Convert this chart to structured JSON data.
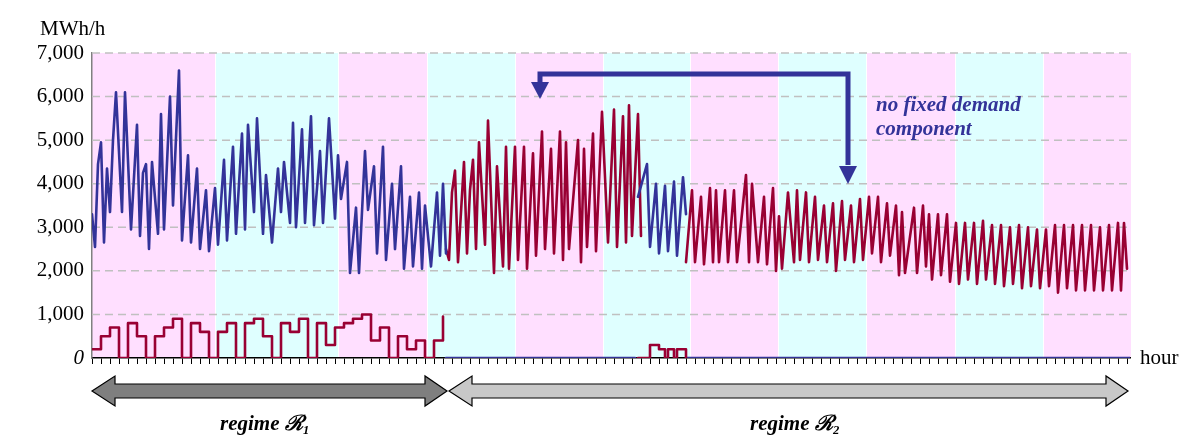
{
  "chart_data": {
    "type": "line",
    "ylabel": "MWh/h",
    "xlabel": "hour",
    "categories": [
      null,
      null,
      null,
      null,
      null,
      null,
      null,
      null,
      null,
      null,
      null,
      null,
      null,
      null,
      null,
      null,
      null,
      null,
      null,
      null,
      null,
      null,
      null,
      null,
      null,
      null,
      null,
      null,
      null,
      null,
      null,
      null,
      null,
      null,
      null,
      null,
      null,
      null,
      null,
      null,
      null,
      null,
      null,
      null,
      null,
      null,
      null,
      null,
      null,
      null,
      null,
      null,
      null,
      null,
      null,
      null,
      null,
      null,
      null,
      null,
      null,
      null,
      null,
      null,
      null,
      null,
      null,
      null,
      null,
      null,
      null,
      null,
      null,
      null,
      null,
      null,
      null,
      null,
      null,
      null,
      null,
      null,
      null,
      null,
      null,
      null,
      null,
      null,
      null,
      null,
      null,
      null,
      null,
      null,
      null,
      null,
      null,
      null,
      null,
      null,
      null,
      null,
      null,
      null,
      null,
      null,
      null,
      null,
      null,
      null,
      null,
      null,
      null,
      null,
      null,
      null,
      null,
      null,
      null,
      null,
      null,
      null,
      null,
      null,
      null,
      null,
      null,
      null,
      null,
      null,
      null,
      null,
      null,
      null,
      null,
      null,
      null,
      null,
      null,
      null,
      null,
      null,
      null,
      null,
      null,
      null,
      null,
      null,
      null,
      null,
      null,
      null,
      null,
      null,
      null,
      null,
      null,
      null,
      null,
      null,
      null,
      null,
      null,
      null,
      null,
      null,
      null,
      null,
      null,
      null,
      null,
      null,
      null,
      null,
      null,
      null,
      null,
      null,
      null,
      null,
      null,
      null,
      null,
      null,
      null,
      null,
      null,
      null,
      null,
      null,
      null,
      null,
      null,
      null,
      null,
      null,
      null,
      null,
      null,
      null,
      null,
      null,
      null,
      null,
      null,
      null,
      null,
      null,
      null,
      null,
      null,
      null,
      null,
      null,
      null,
      null,
      null,
      null,
      null,
      null,
      null,
      null,
      null,
      null,
      null,
      null,
      null,
      null,
      null,
      null,
      null,
      null,
      null,
      null,
      null,
      null,
      null,
      null,
      null,
      null,
      null,
      null,
      null,
      null,
      null,
      null,
      null,
      null,
      null,
      null,
      null,
      null,
      null,
      null,
      null,
      null,
      null,
      null,
      null,
      null,
      null,
      null,
      null,
      null,
      null,
      null,
      null,
      null,
      null,
      null,
      null,
      null,
      null,
      null,
      null,
      null,
      null,
      null,
      null,
      null,
      null,
      null,
      null,
      null,
      null,
      null,
      null,
      null,
      null,
      null,
      null,
      null,
      null,
      null,
      null,
      null,
      null,
      null,
      null,
      null,
      null,
      null,
      null,
      null,
      null,
      null,
      null,
      null,
      null,
      null,
      null,
      null,
      null,
      null,
      null,
      null,
      null,
      null,
      null,
      null,
      null,
      null,
      null,
      null,
      null,
      null,
      null,
      null,
      null,
      null,
      null,
      null,
      null,
      null,
      null,
      null,
      null,
      null,
      null,
      null,
      null,
      null,
      null,
      null,
      null,
      null,
      null
    ],
    "series": [
      {
        "color": "#333399",
        "values": [
          3300,
          2550,
          4450,
          4950,
          2650,
          4350,
          3350,
          5000,
          6100,
          null,
          3350,
          6100,
          null,
          2950,
          null,
          5350,
          2800,
          4250,
          4450,
          2500,
          4500,
          null,
          2850,
          5600,
          2950,
          null,
          6000,
          3500,
          null,
          6600,
          2700,
          null,
          4650,
          2650,
          null,
          4350,
          2500,
          null,
          3850,
          2450,
          null,
          3900,
          2600,
          null,
          4550,
          2700,
          null,
          4850,
          2850,
          null,
          5150,
          2950,
          5350,
          null,
          3350,
          5500,
          null,
          2850,
          4200,
          null,
          2650,
          null,
          4350,
          3350,
          4500,
          null,
          3100,
          5400,
          3000,
          null,
          5250,
          3100,
          null,
          5550,
          3050,
          null,
          4750,
          3100,
          null,
          5500,
          null,
          3200,
          4650,
          3650,
          null,
          4500,
          1950,
          null,
          3450,
          1950,
          null,
          4750,
          3400,
          null,
          4400,
          2400,
          null,
          4850,
          2250,
          null,
          4000,
          2500,
          null,
          4400,
          2050,
          null,
          3700,
          2100,
          null,
          3800,
          2050,
          3500,
          null,
          2100,
          null,
          3800,
          2350,
          4000,
          2400,
          null,
          null,
          null,
          null,
          null,
          null,
          null,
          null,
          null,
          null,
          null,
          null,
          null,
          null,
          null,
          null,
          null,
          null,
          null,
          null,
          null,
          null,
          null,
          null,
          null,
          null,
          null,
          null,
          null,
          null,
          null,
          null,
          null,
          null,
          null,
          null,
          null,
          null,
          null,
          null,
          null,
          null,
          null,
          null,
          null,
          null,
          null,
          null,
          null,
          null,
          null,
          null,
          null,
          null,
          null,
          null,
          null,
          null,
          null,
          null,
          null,
          null,
          null,
          3700,
          null,
          null,
          4450,
          2550,
          null,
          4000,
          2400,
          null,
          3950,
          2450,
          null,
          4050,
          2350,
          null,
          4150,
          3300,
          null,
          null,
          null,
          null,
          null,
          null,
          null,
          null,
          null,
          null,
          null,
          null,
          null,
          null,
          null,
          null,
          null,
          null,
          null,
          null,
          null,
          null,
          null,
          null,
          null,
          null,
          null,
          null,
          null,
          null,
          null,
          null,
          null,
          null,
          null,
          null,
          null,
          null,
          null,
          null,
          null,
          null,
          null,
          null,
          null,
          null,
          null,
          null,
          null,
          null,
          null,
          null,
          null,
          null,
          null,
          null,
          null,
          null,
          null,
          null,
          null,
          null,
          null,
          null,
          null,
          null,
          null,
          null,
          null,
          null,
          null,
          null,
          null,
          null,
          null,
          null,
          null,
          null,
          null,
          null,
          null,
          null,
          null,
          null,
          null,
          null,
          null,
          null,
          null,
          null,
          null,
          null,
          null,
          null,
          null,
          null,
          null,
          null,
          null,
          null,
          null,
          null,
          null,
          null,
          null,
          null,
          null,
          null,
          null,
          null,
          null,
          null,
          null,
          null,
          null,
          null,
          null,
          null,
          null,
          null,
          null,
          null,
          null,
          null,
          null,
          null,
          null,
          null,
          null,
          null,
          null,
          null,
          null,
          null,
          null,
          null,
          null,
          null,
          null,
          null,
          null,
          null,
          null,
          null,
          null,
          null,
          null,
          null
        ]
      },
      {
        "color": "#990033",
        "values": [
          null,
          null,
          null,
          null,
          null,
          null,
          null,
          null,
          null,
          null,
          null,
          null,
          null,
          null,
          null,
          null,
          null,
          null,
          null,
          null,
          null,
          null,
          null,
          null,
          null,
          null,
          null,
          null,
          null,
          null,
          null,
          null,
          null,
          null,
          null,
          null,
          null,
          null,
          null,
          null,
          null,
          null,
          null,
          null,
          null,
          null,
          null,
          null,
          null,
          null,
          null,
          null,
          null,
          null,
          null,
          null,
          null,
          null,
          null,
          null,
          null,
          null,
          null,
          null,
          null,
          null,
          null,
          null,
          null,
          null,
          null,
          null,
          null,
          null,
          null,
          null,
          null,
          null,
          null,
          null,
          null,
          null,
          null,
          null,
          null,
          null,
          null,
          null,
          null,
          null,
          null,
          null,
          null,
          null,
          null,
          null,
          null,
          null,
          null,
          null,
          null,
          null,
          null,
          null,
          null,
          null,
          null,
          null,
          null,
          null,
          null,
          null,
          null,
          null,
          null,
          null,
          null,
          null,
          2500,
          2250,
          3800,
          4300,
          2200,
          null,
          4500,
          2400,
          3850,
          4550,
          2500,
          4950,
          null,
          2600,
          5450,
          null,
          1950,
          4400,
          null,
          2100,
          4850,
          2050,
          null,
          4850,
          2250,
          null,
          4850,
          2050,
          null,
          4700,
          2350,
          null,
          5200,
          2500,
          null,
          4800,
          2400,
          null,
          5200,
          2250,
          4950,
          2500,
          null,
          null,
          5000,
          2200,
          4800,
          2550,
          null,
          5150,
          2450,
          null,
          5650,
          null,
          2650,
          null,
          5700,
          2550,
          null,
          5550,
          2650,
          5800,
          2800,
          null,
          5600,
          2800,
          null,
          null,
          null,
          null,
          null,
          null,
          null,
          null,
          null,
          null,
          null,
          null,
          null,
          null,
          2200,
          null,
          3850,
          2200,
          null,
          3700,
          2150,
          null,
          3900,
          2200,
          3850,
          2200,
          null,
          3850,
          2200,
          null,
          3850,
          2200,
          null,
          null,
          4200,
          2200,
          4000,
          null,
          2200,
          null,
          3700,
          2150,
          null,
          3900,
          2000,
          3250,
          2050,
          null,
          3800,
          null,
          2200,
          3850,
          2250,
          null,
          3800,
          2200,
          null,
          3700,
          2250,
          null,
          3500,
          2200,
          null,
          3550,
          2000,
          null,
          3600,
          2250,
          null,
          3500,
          2200,
          null,
          3650,
          2250,
          null,
          3700,
          2400,
          null,
          3700,
          2200,
          null,
          3550,
          2350,
          null,
          3500,
          1900,
          3350,
          1950,
          null,
          null,
          3450,
          1950,
          null,
          3500,
          2100,
          3300,
          1800,
          null,
          3300,
          1900,
          null,
          3300,
          1750,
          null,
          3100,
          1700,
          null,
          3100,
          1800,
          null,
          3100,
          1700,
          null,
          3150,
          1800,
          null,
          3050,
          1700,
          null,
          3050,
          1650,
          null,
          3000,
          1700,
          null,
          3050,
          1600,
          null,
          3000,
          1650,
          null,
          2950,
          1600,
          null,
          2950,
          1650,
          null,
          3050,
          1500,
          null,
          3050,
          1600,
          null,
          3050,
          1550,
          null,
          3050,
          1550,
          null,
          3050,
          1550,
          null,
          3000,
          1550,
          null,
          3050,
          1550,
          null,
          3100,
          1550,
          3100,
          2050,
          null
        ]
      },
      {
        "type": "step",
        "color": "#990033",
        "values": [
          200,
          null,
          null,
          500,
          null,
          null,
          700,
          null,
          null,
          0,
          null,
          null,
          800,
          null,
          null,
          500,
          null,
          null,
          0,
          null,
          null,
          500,
          null,
          null,
          700,
          null,
          null,
          900,
          null,
          null,
          0,
          null,
          null,
          800,
          null,
          null,
          600,
          null,
          null,
          0,
          null,
          null,
          600,
          null,
          null,
          800,
          null,
          null,
          0,
          null,
          null,
          800,
          null,
          null,
          900,
          null,
          null,
          500,
          null,
          null,
          0,
          null,
          null,
          800,
          null,
          null,
          600,
          null,
          null,
          900,
          null,
          null,
          0,
          null,
          null,
          800,
          null,
          null,
          300,
          null,
          null,
          700,
          null,
          null,
          800,
          null,
          null,
          900,
          null,
          null,
          1000,
          null,
          null,
          400,
          null,
          null,
          700,
          null,
          null,
          0,
          null,
          null,
          500,
          null,
          null,
          200,
          null,
          null,
          400,
          null,
          null,
          0,
          null,
          null,
          400,
          null,
          null,
          950,
          null,
          null,
          null,
          null,
          null,
          null,
          null,
          null,
          null,
          null,
          null,
          null,
          null,
          null,
          null,
          null,
          null,
          null,
          null,
          null,
          null,
          null,
          null,
          null,
          null,
          null,
          null,
          null,
          null,
          null,
          null,
          null,
          null,
          null,
          null,
          null,
          null,
          null,
          null,
          null,
          null,
          null,
          null,
          null,
          null,
          null,
          null,
          null,
          null,
          null,
          null,
          null,
          null,
          null,
          null,
          null,
          null,
          null,
          null,
          null,
          null,
          null,
          null,
          null,
          0,
          null,
          null,
          null,
          300,
          null,
          null,
          200,
          null,
          0,
          200,
          null,
          0,
          200,
          null,
          null,
          0,
          null,
          null,
          null,
          null,
          null,
          null,
          null,
          null,
          null,
          null,
          null,
          null,
          null,
          null,
          null,
          null,
          null,
          null,
          null,
          null,
          null,
          null,
          null,
          null,
          null,
          null,
          null,
          null,
          null,
          null,
          null,
          null,
          null,
          null,
          null,
          null,
          null,
          null,
          null,
          null,
          null,
          null,
          null,
          null,
          null,
          null,
          null,
          null,
          null,
          null,
          null,
          null,
          null,
          null,
          null,
          null,
          null,
          null,
          null,
          null,
          null,
          null,
          null,
          null,
          null,
          null,
          null,
          null,
          null,
          null,
          null,
          null,
          null,
          null,
          null,
          null,
          null,
          null,
          null,
          null,
          null,
          null,
          null,
          null,
          null,
          null,
          null,
          null,
          null,
          null,
          null,
          null,
          null,
          null,
          null,
          null,
          null,
          null,
          null,
          null,
          null,
          null,
          null,
          null,
          null,
          null,
          null,
          null,
          null,
          null,
          null,
          null,
          null,
          null,
          null,
          null,
          null,
          null,
          null,
          null,
          null,
          null,
          null,
          null,
          null,
          null,
          null,
          null,
          null,
          null,
          null,
          null,
          null,
          null,
          null,
          null,
          null,
          null,
          null,
          null,
          null,
          null,
          null,
          null,
          null,
          null,
          null,
          null
        ]
      },
      {
        "type": "step",
        "color": "#333399",
        "values": [
          null,
          null,
          null,
          null,
          null,
          null,
          null,
          null,
          null,
          null,
          null,
          null,
          null,
          null,
          null,
          null,
          null,
          null,
          null,
          null,
          null,
          null,
          null,
          null,
          null,
          null,
          null,
          null,
          null,
          null,
          null,
          null,
          null,
          null,
          null,
          null,
          null,
          null,
          null,
          null,
          null,
          null,
          null,
          null,
          null,
          null,
          null,
          null,
          null,
          null,
          null,
          null,
          null,
          null,
          null,
          null,
          null,
          null,
          null,
          null,
          null,
          null,
          null,
          null,
          null,
          null,
          null,
          null,
          null,
          null,
          null,
          null,
          null,
          null,
          null,
          null,
          null,
          null,
          null,
          null,
          null,
          null,
          null,
          null,
          null,
          null,
          null,
          null,
          null,
          null,
          null,
          null,
          null,
          null,
          null,
          null,
          null,
          null,
          null,
          null,
          null,
          null,
          null,
          null,
          null,
          null,
          null,
          null,
          null,
          null,
          null,
          null,
          null,
          null,
          null,
          null,
          null,
          null,
          0,
          null,
          null,
          0,
          null,
          null,
          0,
          null,
          null,
          0,
          null,
          null,
          0,
          null,
          null,
          0,
          null,
          null,
          0,
          null,
          null,
          0,
          null,
          null,
          0,
          null,
          null,
          0,
          null,
          null,
          0,
          null,
          null,
          0,
          null,
          null,
          0,
          null,
          null,
          0,
          null,
          null,
          0,
          null,
          null,
          0,
          null,
          null,
          0,
          null,
          null,
          0,
          null,
          null,
          0,
          null,
          null,
          0,
          null,
          null,
          0,
          null,
          null,
          0,
          null,
          null,
          null,
          null,
          null,
          null,
          null,
          null,
          null,
          null,
          null,
          null,
          null,
          null,
          null,
          null,
          0,
          null,
          null,
          0,
          null,
          null,
          0,
          null,
          null,
          0,
          null,
          null,
          0,
          null,
          null,
          0,
          null,
          null,
          0,
          null,
          null,
          0,
          null,
          null,
          0,
          null,
          null,
          0,
          null,
          null,
          0,
          null,
          null,
          0,
          null,
          null,
          0,
          null,
          null,
          0,
          null,
          null,
          0,
          null,
          null,
          0,
          null,
          null,
          0,
          null,
          null,
          0,
          null,
          null,
          0,
          null,
          null,
          0,
          null,
          null,
          0,
          null,
          null,
          0,
          null,
          null,
          0,
          null,
          null,
          0,
          null,
          null,
          0,
          null,
          null,
          0,
          null,
          null,
          0,
          null,
          null,
          0,
          null,
          null,
          0,
          null,
          null,
          0,
          null,
          null,
          0,
          null,
          null,
          0,
          null,
          null,
          0,
          null,
          null,
          0,
          null,
          null,
          0,
          null,
          null,
          0,
          null,
          null,
          0,
          null,
          null,
          0,
          null,
          null,
          0,
          null,
          null,
          0,
          null,
          null,
          0,
          null,
          null,
          0,
          null,
          null,
          0,
          null,
          null,
          0,
          null,
          null,
          0,
          null,
          null,
          0,
          null,
          null,
          0,
          null,
          null,
          0,
          null,
          null,
          0,
          null,
          null,
          0,
          0
        ]
      }
    ],
    "ylim": [
      0,
      7000
    ],
    "yticks": [
      0,
      {
        "value": 1000,
        "label": "1,000"
      },
      {
        "value": 2000,
        "label": "2,000"
      },
      {
        "value": 3000,
        "label": "3,000"
      },
      {
        "value": 4000,
        "label": "4,000"
      },
      {
        "value": 5000,
        "label": "5,000"
      },
      {
        "value": 6000,
        "label": "6,000"
      },
      {
        "value": 7000,
        "label": "7,000"
      }
    ],
    "grid": "y",
    "tick_labels": "y",
    "annotations": [
      "no fixed demand component",
      "regime ℛ₁",
      "regime ℛ₂"
    ]
  }
}
